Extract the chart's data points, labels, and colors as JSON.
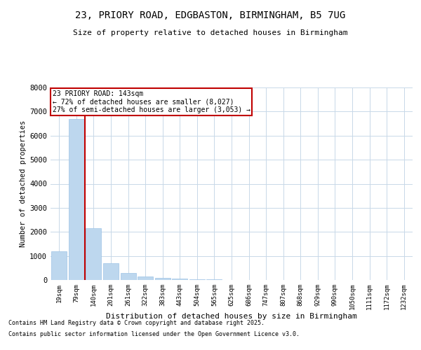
{
  "title_line1": "23, PRIORY ROAD, EDGBASTON, BIRMINGHAM, B5 7UG",
  "title_line2": "Size of property relative to detached houses in Birmingham",
  "xlabel": "Distribution of detached houses by size in Birmingham",
  "ylabel": "Number of detached properties",
  "categories": [
    "19sqm",
    "79sqm",
    "140sqm",
    "201sqm",
    "261sqm",
    "322sqm",
    "383sqm",
    "443sqm",
    "504sqm",
    "565sqm",
    "625sqm",
    "686sqm",
    "747sqm",
    "807sqm",
    "868sqm",
    "929sqm",
    "990sqm",
    "1050sqm",
    "1111sqm",
    "1172sqm",
    "1232sqm"
  ],
  "values": [
    1200,
    6700,
    2150,
    700,
    300,
    150,
    80,
    50,
    30,
    15,
    8,
    5,
    3,
    2,
    1,
    1,
    1,
    0,
    0,
    0,
    0
  ],
  "bar_color": "#bdd7ee",
  "bar_edge_color": "#9dc3e6",
  "vline_color": "#c00000",
  "annotation_text": "23 PRIORY ROAD: 143sqm\n← 72% of detached houses are smaller (8,027)\n27% of semi-detached houses are larger (3,053) →",
  "annotation_box_color": "#c00000",
  "annotation_text_color": "#000000",
  "ylim": [
    0,
    8000
  ],
  "yticks": [
    0,
    1000,
    2000,
    3000,
    4000,
    5000,
    6000,
    7000,
    8000
  ],
  "background_color": "#ffffff",
  "grid_color": "#c8d8e8",
  "footer_line1": "Contains HM Land Registry data © Crown copyright and database right 2025.",
  "footer_line2": "Contains public sector information licensed under the Open Government Licence v3.0."
}
